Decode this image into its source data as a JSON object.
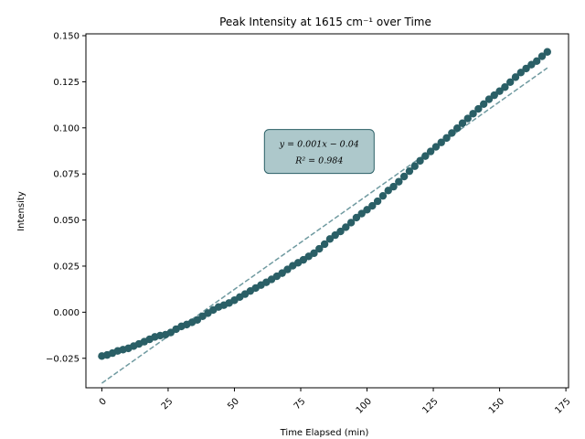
{
  "chart_data": {
    "type": "scatter",
    "title": "Peak Intensity at 1615 cm⁻¹ over Time",
    "xlabel": "Time Elapsed (min)",
    "ylabel": "Intensity",
    "xlim": [
      -6,
      176
    ],
    "ylim": [
      -0.041,
      0.151
    ],
    "xticks": [
      0,
      25,
      50,
      75,
      100,
      125,
      150,
      175
    ],
    "xtick_labels": [
      "0",
      "25",
      "50",
      "75",
      "100",
      "125",
      "150",
      "175"
    ],
    "xtick_rotation": 45,
    "yticks": [
      -0.025,
      0,
      0.025,
      0.05,
      0.075,
      0.1,
      0.125,
      0.15
    ],
    "ytick_labels": [
      "−0.025",
      "0.000",
      "0.025",
      "0.050",
      "0.075",
      "0.100",
      "0.125",
      "0.150"
    ],
    "grid": false,
    "series": [
      {
        "marker": "circle",
        "color": "#2a5f66",
        "x": [
          0,
          2,
          4,
          6,
          8,
          10,
          12,
          14,
          16,
          18,
          20,
          22,
          24,
          26,
          28,
          30,
          32,
          34,
          36,
          38,
          40,
          42,
          44,
          46,
          48,
          50,
          52,
          54,
          56,
          58,
          60,
          62,
          64,
          66,
          68,
          70,
          72,
          74,
          76,
          78,
          80,
          82,
          84,
          86,
          88,
          90,
          92,
          94,
          96,
          98,
          100,
          102,
          104,
          106,
          108,
          110,
          112,
          114,
          116,
          118,
          120,
          122,
          124,
          126,
          128,
          130,
          132,
          134,
          136,
          138,
          140,
          142,
          144,
          146,
          148,
          150,
          152,
          154,
          156,
          158,
          160,
          162,
          164,
          166,
          168
        ],
        "y": [
          -0.0238,
          -0.0232,
          -0.0222,
          -0.021,
          -0.0203,
          -0.0196,
          -0.0184,
          -0.0172,
          -0.016,
          -0.0147,
          -0.0134,
          -0.0127,
          -0.0122,
          -0.011,
          -0.0092,
          -0.0077,
          -0.0067,
          -0.0055,
          -0.0042,
          -0.0022,
          -0.0005,
          0.0012,
          0.0028,
          0.0038,
          0.005,
          0.0065,
          0.0082,
          0.0098,
          0.0115,
          0.0131,
          0.0147,
          0.0162,
          0.0178,
          0.0195,
          0.0212,
          0.0232,
          0.0252,
          0.0268,
          0.0284,
          0.0303,
          0.032,
          0.0344,
          0.0369,
          0.0397,
          0.0418,
          0.0438,
          0.0461,
          0.0486,
          0.0513,
          0.0535,
          0.0556,
          0.0577,
          0.0602,
          0.0631,
          0.066,
          0.0681,
          0.0708,
          0.0736,
          0.0765,
          0.0792,
          0.0821,
          0.0847,
          0.0872,
          0.0897,
          0.0921,
          0.0945,
          0.0972,
          0.0998,
          0.1025,
          0.1051,
          0.1077,
          0.1103,
          0.1129,
          0.1155,
          0.1177,
          0.1199,
          0.1221,
          0.1248,
          0.1275,
          0.13,
          0.1322,
          0.1343,
          0.1362,
          0.1388,
          0.1412
        ]
      }
    ],
    "fit_line": {
      "color": "#6f9aa0",
      "style": "dashed",
      "x": [
        0,
        168
      ],
      "y": [
        -0.0385,
        0.1325
      ]
    },
    "annotation": {
      "line1": "y = 0.001x − 0.04",
      "line2": "R² = 0.984",
      "anchor_x": 82,
      "anchor_y": 0.0872,
      "box_color": "#adc8cb",
      "border_color": "#2a5f66"
    }
  }
}
